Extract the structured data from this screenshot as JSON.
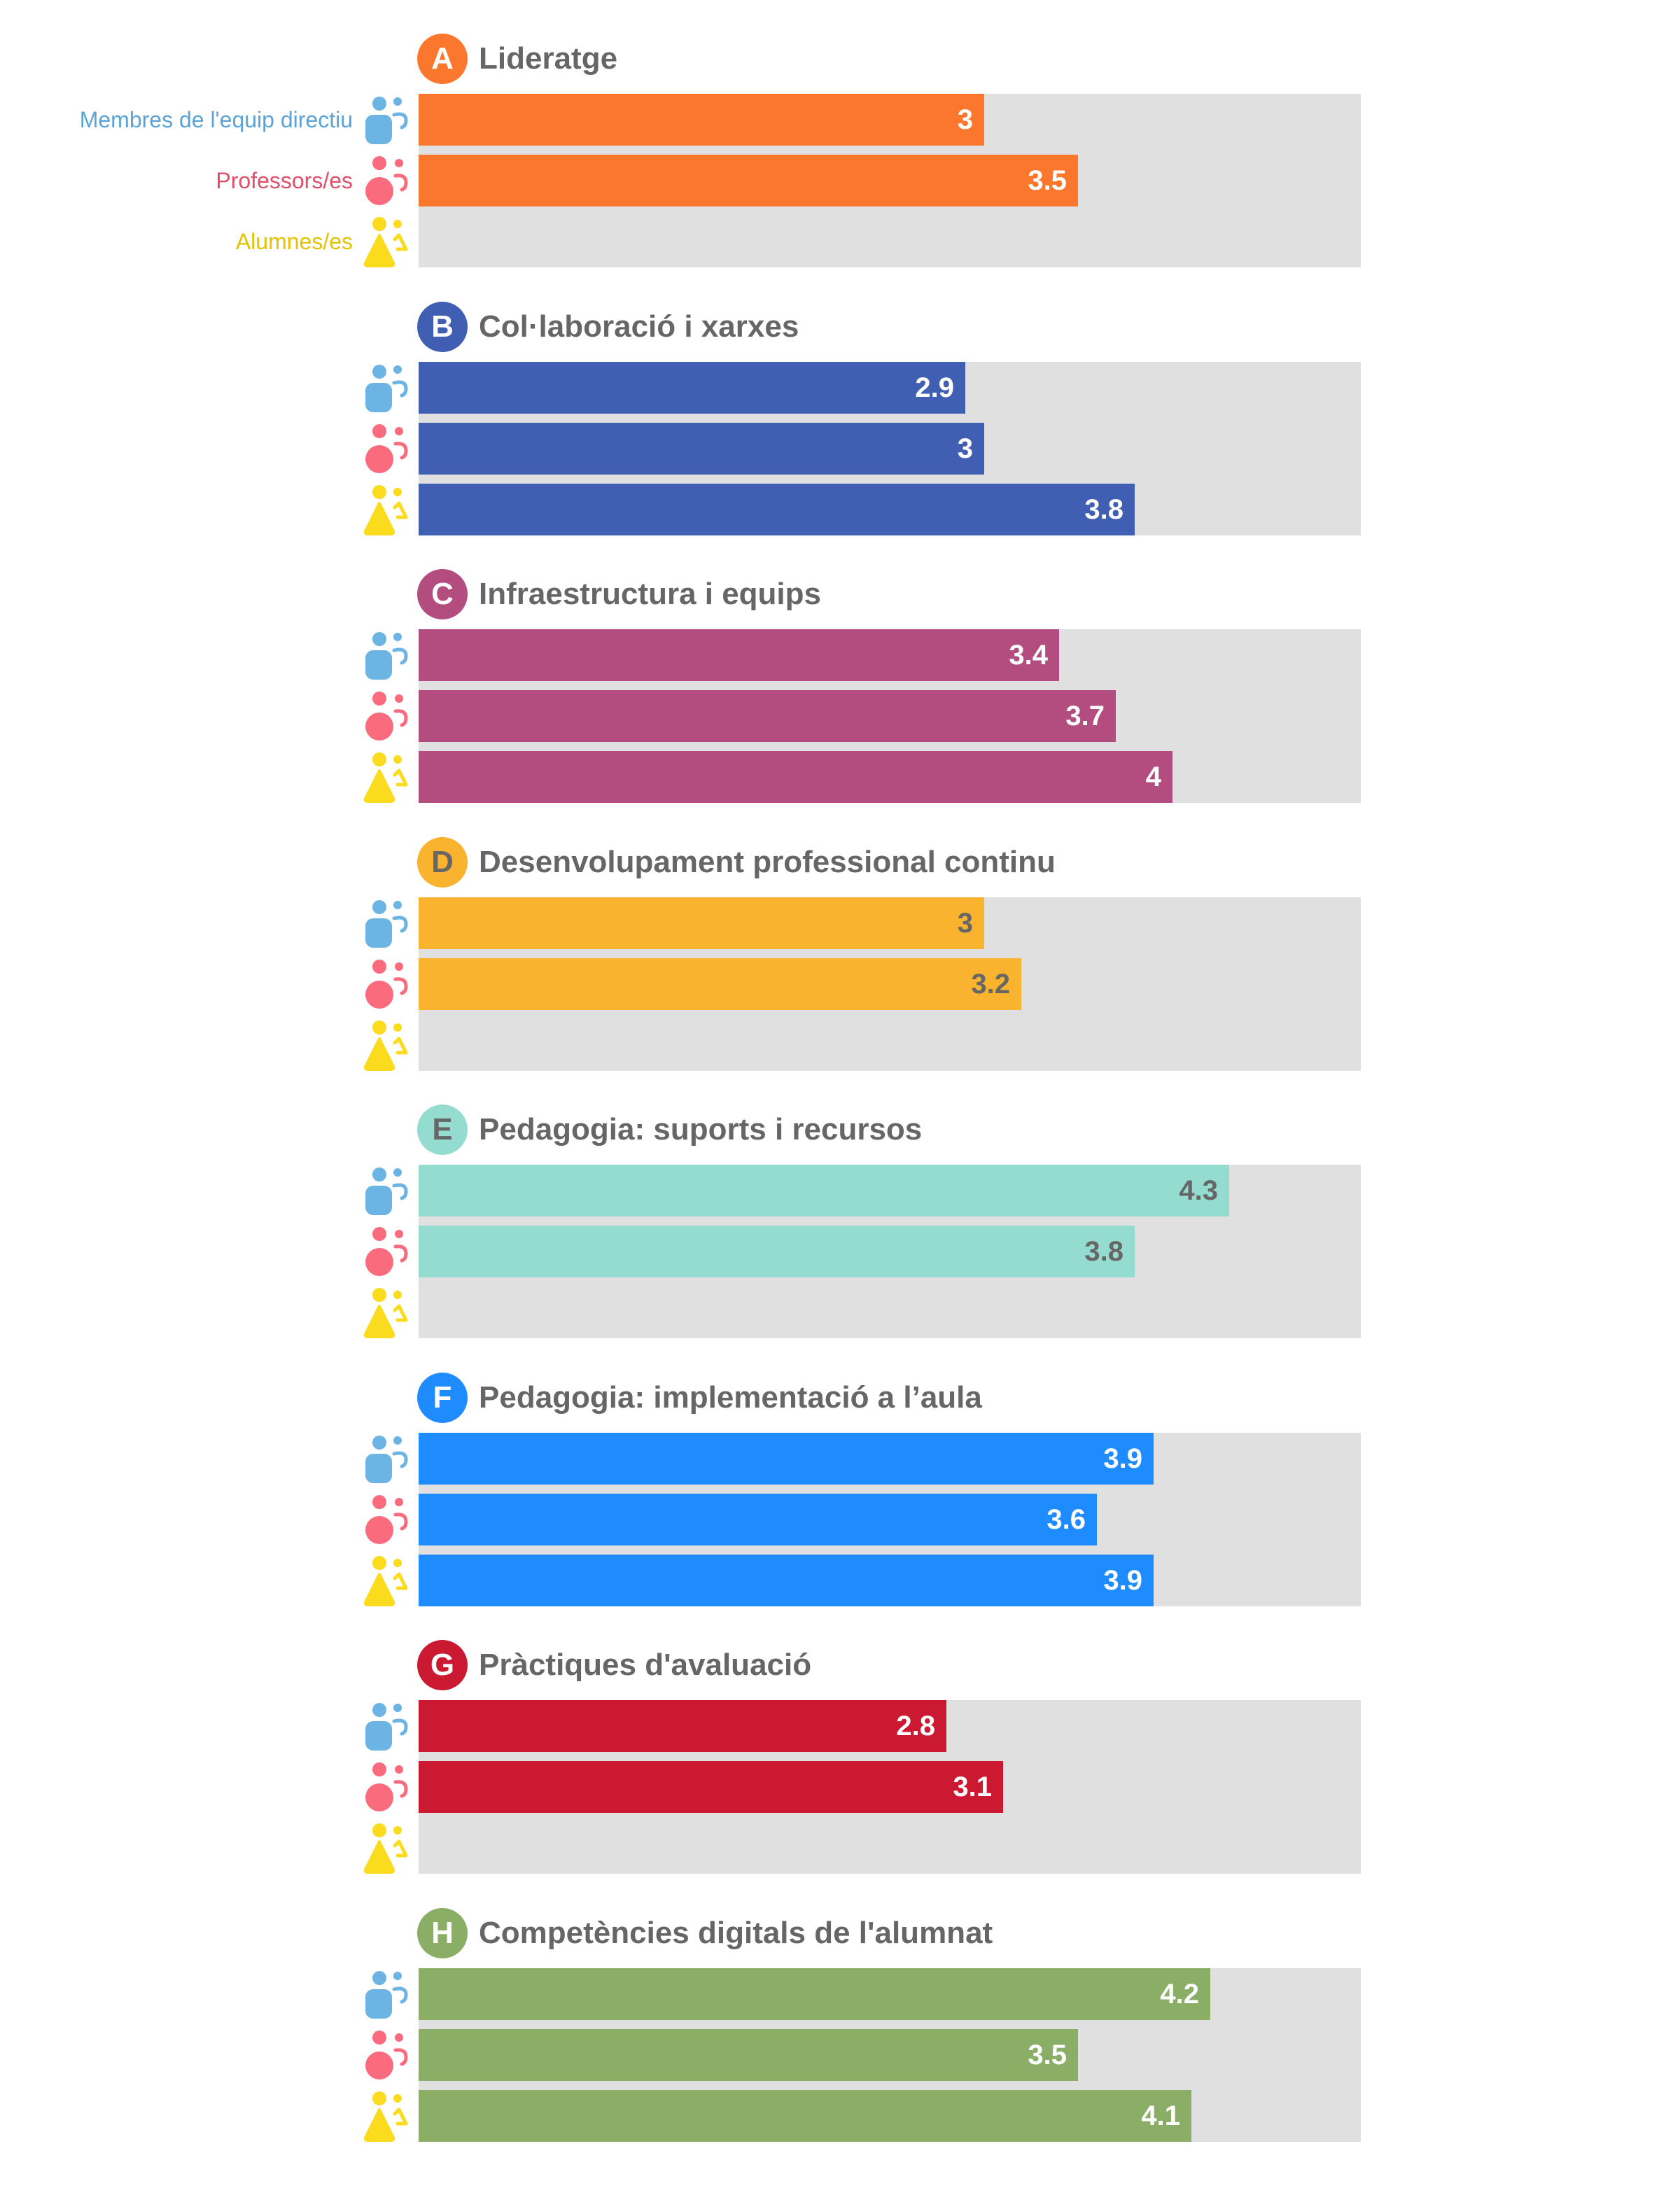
{
  "groups": [
    {
      "name": "Membres de l'equip directiu",
      "color": "#5ba3d6",
      "icon_color": "#6cb4e4",
      "icon": "person-rounded-square-icon"
    },
    {
      "name": "Professors/es",
      "color": "#e04e6a",
      "icon_color": "#f96b7d",
      "icon": "person-circle-icon"
    },
    {
      "name": "Alumnes/es",
      "color": "#e5c100",
      "icon_color": "#fadb1e",
      "icon": "person-triangle-icon"
    }
  ],
  "chart_data": {
    "type": "bar",
    "orientation": "horizontal",
    "xlim": [
      0,
      5
    ],
    "series_names": [
      "Membres de l'equip directiu",
      "Professors/es",
      "Alumnes/es"
    ],
    "categories": [
      {
        "letter": "A",
        "title": "Lideratge",
        "color": "#fb772d",
        "text_color": "#ffffff",
        "values": [
          3,
          3.5,
          null
        ],
        "labels": [
          "3",
          "3.5",
          ""
        ]
      },
      {
        "letter": "B",
        "title": "Col·laboració i xarxes",
        "color": "#405fb2",
        "text_color": "#ffffff",
        "values": [
          2.9,
          3,
          3.8
        ],
        "labels": [
          "2.9",
          "3",
          "3.8"
        ]
      },
      {
        "letter": "C",
        "title": "Infraestructura i equips",
        "color": "#b44d7f",
        "text_color": "#ffffff",
        "values": [
          3.4,
          3.7,
          4
        ],
        "labels": [
          "3.4",
          "3.7",
          "4"
        ]
      },
      {
        "letter": "D",
        "title": "Desenvolupament professional continu",
        "color": "#f9b32f",
        "text_color": "#666666",
        "values": [
          3,
          3.2,
          null
        ],
        "labels": [
          "3",
          "3.2",
          ""
        ]
      },
      {
        "letter": "E",
        "title": "Pedagogia: suports i recursos",
        "color": "#95dcd0",
        "text_color": "#666666",
        "values": [
          4.3,
          3.8,
          null
        ],
        "labels": [
          "4.3",
          "3.8",
          ""
        ]
      },
      {
        "letter": "F",
        "title": "Pedagogia: implementació a l’aula",
        "color": "#1e8cff",
        "text_color": "#ffffff",
        "values": [
          3.9,
          3.6,
          3.9
        ],
        "labels": [
          "3.9",
          "3.6",
          "3.9"
        ]
      },
      {
        "letter": "G",
        "title": "Pràctiques d'avaluació",
        "color": "#cb1931",
        "text_color": "#ffffff",
        "values": [
          2.8,
          3.1,
          null
        ],
        "labels": [
          "2.8",
          "3.1",
          ""
        ]
      },
      {
        "letter": "H",
        "title": "Competències digitals de l'alumnat",
        "color": "#8aae66",
        "text_color": "#ffffff",
        "values": [
          4.2,
          3.5,
          4.1
        ],
        "labels": [
          "4.2",
          "3.5",
          "4.1"
        ]
      }
    ]
  }
}
